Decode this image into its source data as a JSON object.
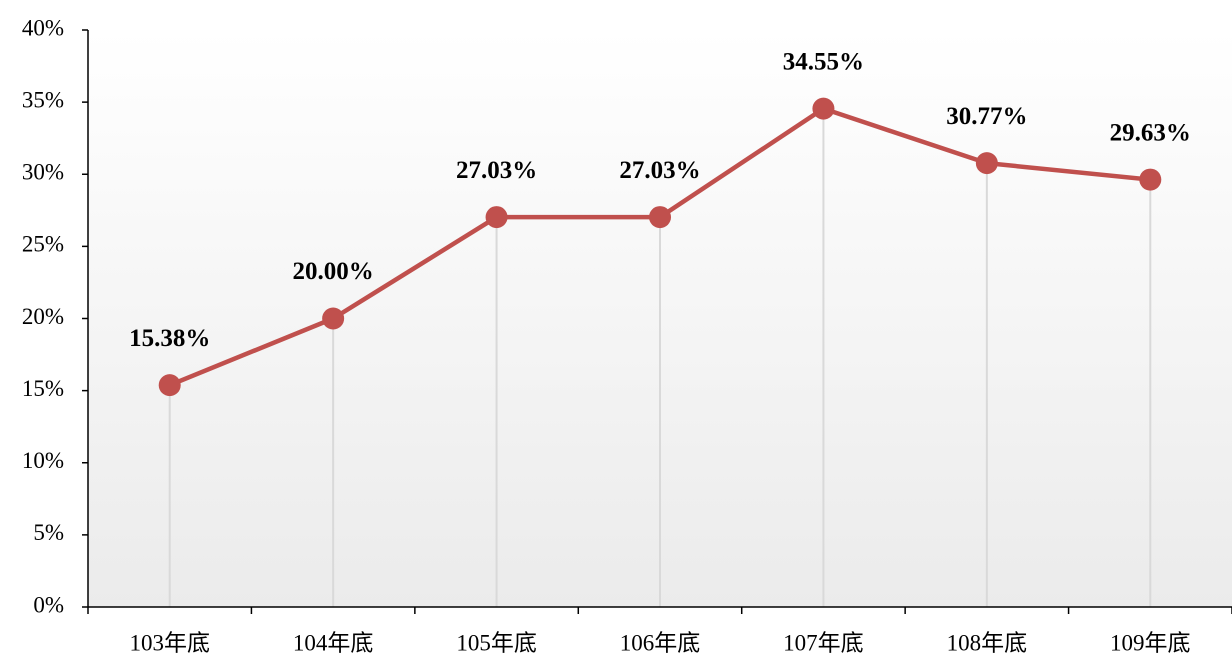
{
  "chart_data": {
    "type": "line",
    "categories": [
      "103年底",
      "104年底",
      "105年底",
      "106年底",
      "107年底",
      "108年底",
      "109年底"
    ],
    "values": [
      15.38,
      20.0,
      27.03,
      27.03,
      34.55,
      30.77,
      29.63
    ],
    "value_labels": [
      "15.38%",
      "20.00%",
      "27.03%",
      "27.03%",
      "34.55%",
      "30.77%",
      "29.63%"
    ],
    "color": "#c0504d",
    "ylim": [
      0,
      40
    ],
    "yticks": [
      {
        "value": 0,
        "label": "0%"
      },
      {
        "value": 5,
        "label": "5%"
      },
      {
        "value": 10,
        "label": "10%"
      },
      {
        "value": 15,
        "label": "15%"
      },
      {
        "value": 20,
        "label": "20%"
      },
      {
        "value": 25,
        "label": "25%"
      },
      {
        "value": 30,
        "label": "30%"
      },
      {
        "value": 35,
        "label": "35%"
      },
      {
        "value": 40,
        "label": "40%"
      }
    ]
  }
}
